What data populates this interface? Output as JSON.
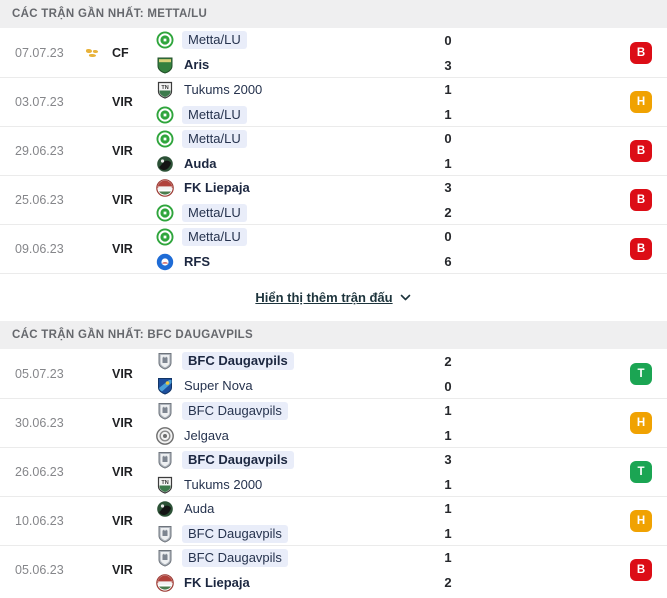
{
  "colors": {
    "badge_loss": "#dc0d16",
    "badge_draw": "#f0a202",
    "badge_win": "#1ba553",
    "highlight_bg": "#e9edf9",
    "header_bg": "#efeff0",
    "latvia_flag_red": "#93303a"
  },
  "sections": [
    {
      "header": "CÁC TRẬN GẦN NHẤT: METTA/LU",
      "matches": [
        {
          "date": "07.07.23",
          "flag": "world",
          "competition": "CF",
          "home": {
            "name": "Metta/LU",
            "logo": "metta",
            "highlight": true,
            "winner": false
          },
          "away": {
            "name": "Aris",
            "logo": "aris",
            "highlight": false,
            "winner": true
          },
          "home_score": "0",
          "away_score": "3",
          "result": "B"
        },
        {
          "date": "03.07.23",
          "flag": "latvia",
          "competition": "VIR",
          "home": {
            "name": "Tukums 2000",
            "logo": "tukums",
            "highlight": false,
            "winner": false
          },
          "away": {
            "name": "Metta/LU",
            "logo": "metta",
            "highlight": true,
            "winner": false
          },
          "home_score": "1",
          "away_score": "1",
          "result": "H"
        },
        {
          "date": "29.06.23",
          "flag": "latvia",
          "competition": "VIR",
          "home": {
            "name": "Metta/LU",
            "logo": "metta",
            "highlight": true,
            "winner": false
          },
          "away": {
            "name": "Auda",
            "logo": "auda",
            "highlight": false,
            "winner": true
          },
          "home_score": "0",
          "away_score": "1",
          "result": "B"
        },
        {
          "date": "25.06.23",
          "flag": "latvia",
          "competition": "VIR",
          "home": {
            "name": "FK Liepaja",
            "logo": "liepaja",
            "highlight": false,
            "winner": true
          },
          "away": {
            "name": "Metta/LU",
            "logo": "metta",
            "highlight": true,
            "winner": false
          },
          "home_score": "3",
          "away_score": "2",
          "result": "B"
        },
        {
          "date": "09.06.23",
          "flag": "latvia",
          "competition": "VIR",
          "home": {
            "name": "Metta/LU",
            "logo": "metta",
            "highlight": true,
            "winner": false
          },
          "away": {
            "name": "RFS",
            "logo": "rfs",
            "highlight": false,
            "winner": true
          },
          "home_score": "0",
          "away_score": "6",
          "result": "B"
        }
      ],
      "show_more_label": "Hiển thị thêm trận đấu"
    },
    {
      "header": "CÁC TRẬN GẦN NHẤT: BFC DAUGAVPILS",
      "matches": [
        {
          "date": "05.07.23",
          "flag": "latvia",
          "competition": "VIR",
          "home": {
            "name": "BFC Daugavpils",
            "logo": "bfc",
            "highlight": true,
            "winner": true
          },
          "away": {
            "name": "Super Nova",
            "logo": "supernova",
            "highlight": false,
            "winner": false
          },
          "home_score": "2",
          "away_score": "0",
          "result": "T"
        },
        {
          "date": "30.06.23",
          "flag": "latvia",
          "competition": "VIR",
          "home": {
            "name": "BFC Daugavpils",
            "logo": "bfc",
            "highlight": true,
            "winner": false
          },
          "away": {
            "name": "Jelgava",
            "logo": "jelgava",
            "highlight": false,
            "winner": false
          },
          "home_score": "1",
          "away_score": "1",
          "result": "H"
        },
        {
          "date": "26.06.23",
          "flag": "latvia",
          "competition": "VIR",
          "home": {
            "name": "BFC Daugavpils",
            "logo": "bfc",
            "highlight": true,
            "winner": true
          },
          "away": {
            "name": "Tukums 2000",
            "logo": "tukums",
            "highlight": false,
            "winner": false
          },
          "home_score": "3",
          "away_score": "1",
          "result": "T"
        },
        {
          "date": "10.06.23",
          "flag": "latvia",
          "competition": "VIR",
          "home": {
            "name": "Auda",
            "logo": "auda",
            "highlight": false,
            "winner": false
          },
          "away": {
            "name": "BFC Daugavpils",
            "logo": "bfc",
            "highlight": true,
            "winner": false
          },
          "home_score": "1",
          "away_score": "1",
          "result": "H"
        },
        {
          "date": "05.06.23",
          "flag": "latvia",
          "competition": "VIR",
          "home": {
            "name": "BFC Daugavpils",
            "logo": "bfc",
            "highlight": true,
            "winner": false
          },
          "away": {
            "name": "FK Liepaja",
            "logo": "liepaja",
            "highlight": false,
            "winner": true
          },
          "home_score": "1",
          "away_score": "2",
          "result": "B"
        }
      ],
      "show_more_label": null
    }
  ]
}
